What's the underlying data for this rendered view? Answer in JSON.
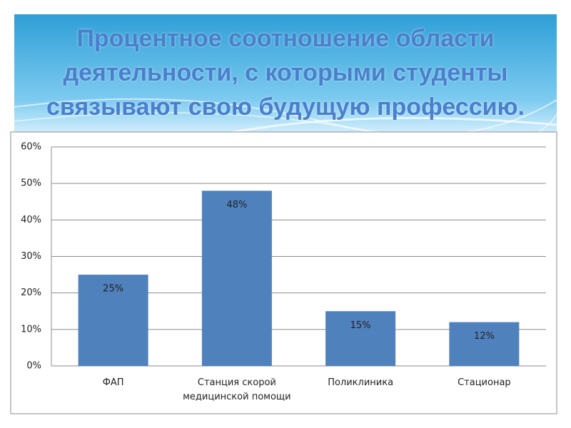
{
  "chart_data": {
    "type": "bar",
    "title": "Процентное соотношение области деятельности, с которыми студенты связывают свою будущую профессию.",
    "categories": [
      "ФАП",
      "Станция скорой медицинской помощи",
      "Поликлиника",
      "Стационар"
    ],
    "values": [
      25,
      48,
      15,
      12
    ],
    "value_labels": [
      "25%",
      "48%",
      "15%",
      "12%"
    ],
    "color": "#4f81bd",
    "ylim": [
      0,
      60
    ],
    "yticks": [
      {
        "value": 0,
        "label": "0%"
      },
      {
        "value": 10,
        "label": "10%"
      },
      {
        "value": 20,
        "label": "20%"
      },
      {
        "value": 30,
        "label": "30%"
      },
      {
        "value": 40,
        "label": "40%"
      },
      {
        "value": 50,
        "label": "50%"
      },
      {
        "value": 60,
        "label": "60%"
      }
    ],
    "grid": true
  }
}
